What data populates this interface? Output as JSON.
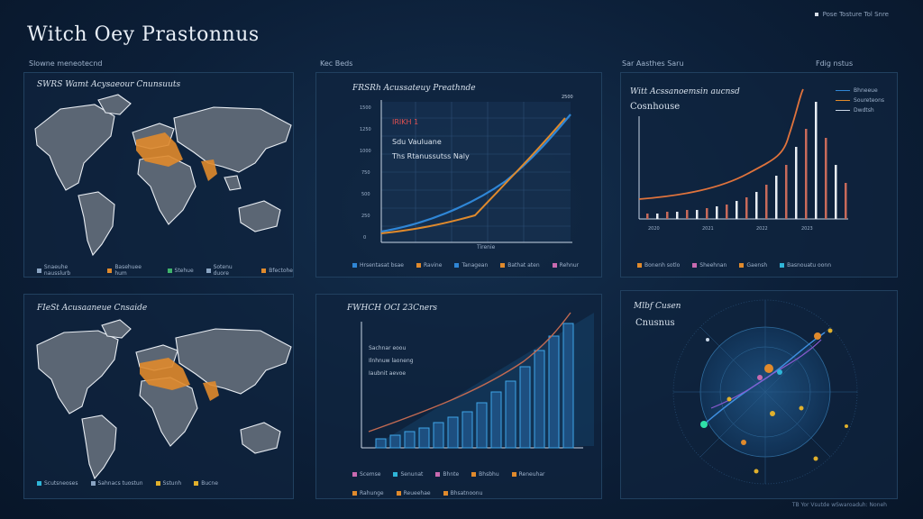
{
  "title": "Witch Oey Prastonnus",
  "top_right": "Pose Tosture Tol Snre",
  "headers": [
    "Slowne meneotecnd",
    "Kec Beds",
    "Sar Aasthes Saru"
  ],
  "top_right_header": "Fdig nstus",
  "panel_map1": {
    "title": "SWRS Wamt Acysaeour Cnunsuuts",
    "legend": [
      {
        "label": "Snaeuhe nausslurb",
        "color": "#8aa4c2"
      },
      {
        "label": "Basehuee hum",
        "color": "#e08a2c"
      },
      {
        "label": "Stehue",
        "color": "#3fb36b"
      },
      {
        "label": "Sotenu duore",
        "color": "#8aa4c2"
      },
      {
        "label": "Bfectohe",
        "color": "#e08a2c"
      }
    ]
  },
  "panel_line": {
    "title": "FRSRh Acussateuy Preathnde",
    "annotations": [
      "IRIKH 1",
      "Sdu Vauluane",
      "Ths Rtanussutss Naly"
    ],
    "xlabel": "Tirenie",
    "legend": [
      {
        "label": "Hrsentasat bsae",
        "color": "#2f86d6"
      },
      {
        "label": "Ravine",
        "color": "#e08a2c"
      },
      {
        "label": "Tanagean",
        "color": "#2f86d6"
      },
      {
        "label": "Bathat aten",
        "color": "#e08a2c"
      },
      {
        "label": "Rehnur",
        "color": "#c86ab0"
      }
    ]
  },
  "panel_spike": {
    "title": "Witt Acssanoemsin aucnsd",
    "subtitle": "Cosnhouse",
    "legend_top": [
      "Bhneeue",
      "Soureteons",
      "Dwdtsh"
    ],
    "legend": [
      {
        "label": "Bonenh sotlo",
        "color": "#e08a2c"
      },
      {
        "label": "Sheehnan",
        "color": "#c86ab0"
      },
      {
        "label": "Gaensh",
        "color": "#e08a2c"
      },
      {
        "label": "Basnouatu oonn",
        "color": "#2fb5d8"
      }
    ]
  },
  "panel_map2": {
    "title": "FIeSt Acusaaneue Cnsaide",
    "legend": [
      {
        "label": "Scutsneoses",
        "color": "#2fb5d8"
      },
      {
        "label": "Sahnacs tuostun",
        "color": "#8aa4c2"
      },
      {
        "label": "Sstunh",
        "color": "#e0b02c"
      },
      {
        "label": "Bucne",
        "color": "#e0b02c"
      }
    ]
  },
  "panel_bars": {
    "title": "FWHCH OCI 23Cners",
    "annotations": [
      "Sachnar eoou",
      "Ilnhnuw laoneng",
      "Iaubnit aevoe"
    ],
    "legend": [
      {
        "label": "Scemse",
        "color": "#c86ab0"
      },
      {
        "label": "Senunat",
        "color": "#2fb5d8"
      },
      {
        "label": "Bhnte",
        "color": "#c86ab0"
      },
      {
        "label": "Bhsbhu",
        "color": "#e08a2c"
      },
      {
        "label": "Reneuhar",
        "color": "#e08a2c"
      },
      {
        "label": "Rahunge",
        "color": "#e08a2c"
      },
      {
        "label": "Reueehae",
        "color": "#e08a2c"
      },
      {
        "label": "Bhsatnoonu",
        "color": "#e08a2c"
      }
    ]
  },
  "panel_radar": {
    "title": "Mlbf Cusen",
    "subtitle": "Cnusnus"
  },
  "footer": "TB Yor Vsutde wSwaroaduh: Noneh"
}
